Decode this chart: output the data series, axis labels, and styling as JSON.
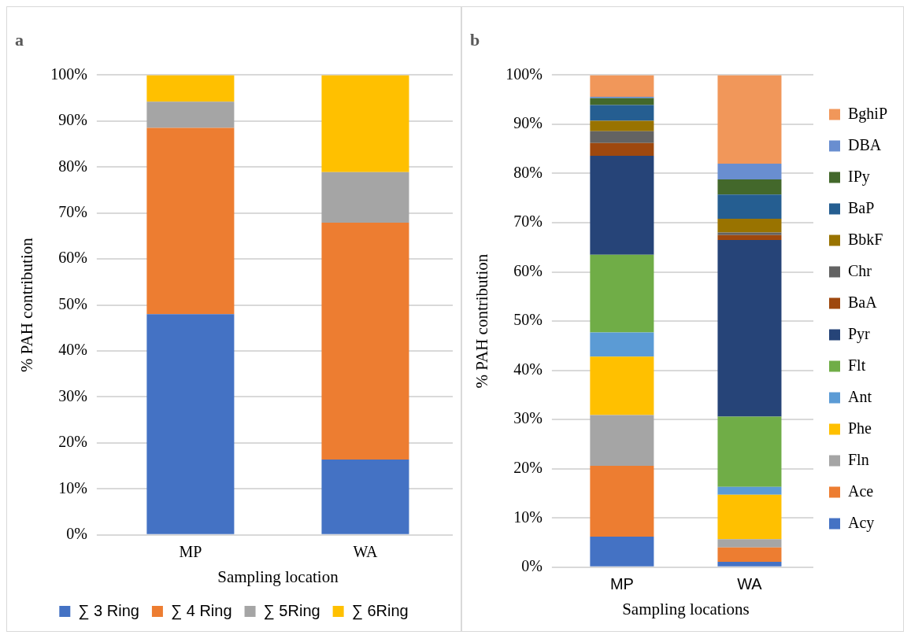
{
  "chart_data": [
    {
      "type": "bar",
      "title": "a",
      "xlabel": "Sampling location",
      "ylabel": "% PAH contribution",
      "categories": [
        "MP",
        "WA"
      ],
      "stacked": true,
      "series": [
        {
          "name": "∑ 3 Ring",
          "color": "#4472c4",
          "values": [
            48,
            16.4
          ]
        },
        {
          "name": "∑ 4 Ring",
          "color": "#ed7d31",
          "values": [
            40.5,
            51.5
          ]
        },
        {
          "name": "∑ 5Ring",
          "color": "#a5a5a5",
          "values": [
            5.7,
            11
          ]
        },
        {
          "name": "∑ 6Ring",
          "color": "#ffc000",
          "values": [
            5.8,
            21.1
          ]
        }
      ],
      "ylim": [
        0,
        100
      ],
      "yticks": [
        {
          "value": 0,
          "label": "0%"
        },
        {
          "value": 10,
          "label": "10%"
        },
        {
          "value": 20,
          "label": "20%"
        },
        {
          "value": 30,
          "label": "30%"
        },
        {
          "value": 40,
          "label": "40%"
        },
        {
          "value": 50,
          "label": "50%"
        },
        {
          "value": 60,
          "label": "60%"
        },
        {
          "value": 70,
          "label": "70%"
        },
        {
          "value": 80,
          "label": "80%"
        },
        {
          "value": 90,
          "label": "90%"
        },
        {
          "value": 100,
          "label": "100%"
        }
      ],
      "grid": "y",
      "legend": "bottom"
    },
    {
      "type": "bar",
      "title": "b",
      "xlabel": "Sampling locations",
      "ylabel": "% PAH contribution",
      "categories": [
        "MP",
        "WA"
      ],
      "stacked": true,
      "series": [
        {
          "name": "Acy",
          "color": "#4472c4",
          "values": [
            6.2,
            1.1
          ]
        },
        {
          "name": "Ace",
          "color": "#ed7d31",
          "values": [
            14.4,
            2.9
          ]
        },
        {
          "name": "Fln",
          "color": "#a5a5a5",
          "values": [
            10.3,
            1.7
          ]
        },
        {
          "name": "Phe",
          "color": "#ffc000",
          "values": [
            11.9,
            9
          ]
        },
        {
          "name": "Ant",
          "color": "#5b9bd5",
          "values": [
            4.9,
            1.6
          ]
        },
        {
          "name": "Flt",
          "color": "#70ad47",
          "values": [
            15.8,
            14.3
          ]
        },
        {
          "name": "Pyr",
          "color": "#264478",
          "values": [
            20.1,
            35.9
          ]
        },
        {
          "name": "BaA",
          "color": "#9e480e",
          "values": [
            2.6,
            1
          ]
        },
        {
          "name": "Chr",
          "color": "#636363",
          "values": [
            2.4,
            0.5
          ]
        },
        {
          "name": "BbkF",
          "color": "#997300",
          "values": [
            2.1,
            2.8
          ]
        },
        {
          "name": "BaP",
          "color": "#255e91",
          "values": [
            3.2,
            4.9
          ]
        },
        {
          "name": "IPy",
          "color": "#43682b",
          "values": [
            1.4,
            3.1
          ]
        },
        {
          "name": "DBA",
          "color": "#698ed0",
          "values": [
            0.3,
            3.2
          ]
        },
        {
          "name": "BghiP",
          "color": "#f1975a",
          "values": [
            4.4,
            18
          ]
        }
      ],
      "ylim": [
        0,
        100
      ],
      "yticks": [
        {
          "value": 0,
          "label": "0%"
        },
        {
          "value": 10,
          "label": "10%"
        },
        {
          "value": 20,
          "label": "20%"
        },
        {
          "value": 30,
          "label": "30%"
        },
        {
          "value": 40,
          "label": "40%"
        },
        {
          "value": 50,
          "label": "50%"
        },
        {
          "value": 60,
          "label": "60%"
        },
        {
          "value": 70,
          "label": "70%"
        },
        {
          "value": 80,
          "label": "80%"
        },
        {
          "value": 90,
          "label": "90%"
        },
        {
          "value": 100,
          "label": "100%"
        }
      ],
      "grid": "y",
      "legend": "right"
    }
  ]
}
